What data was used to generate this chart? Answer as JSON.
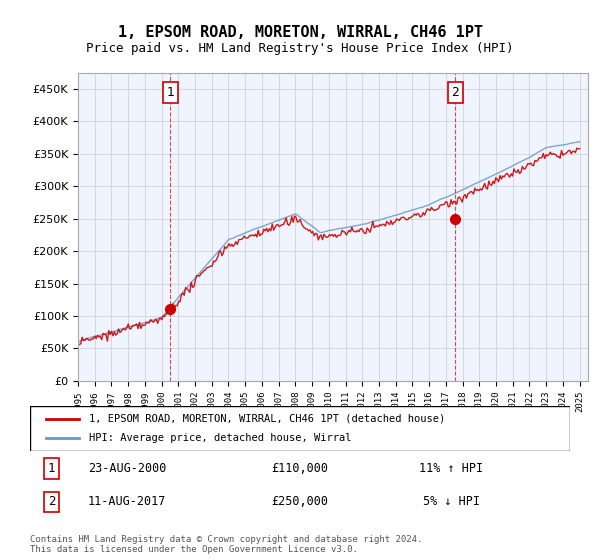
{
  "title": "1, EPSOM ROAD, MORETON, WIRRAL, CH46 1PT",
  "subtitle": "Price paid vs. HM Land Registry's House Price Index (HPI)",
  "legend_line1": "1, EPSOM ROAD, MORETON, WIRRAL, CH46 1PT (detached house)",
  "legend_line2": "HPI: Average price, detached house, Wirral",
  "transaction1_label": "1",
  "transaction1_date": "23-AUG-2000",
  "transaction1_price": "£110,000",
  "transaction1_hpi": "11% ↑ HPI",
  "transaction2_label": "2",
  "transaction2_date": "11-AUG-2017",
  "transaction2_price": "£250,000",
  "transaction2_hpi": "5% ↓ HPI",
  "footer": "Contains HM Land Registry data © Crown copyright and database right 2024.\nThis data is licensed under the Open Government Licence v3.0.",
  "red_color": "#cc0000",
  "blue_color": "#6699cc",
  "background_color": "#ffffff",
  "grid_color": "#cccccc",
  "ylim": [
    0,
    475000
  ],
  "yticks": [
    0,
    50000,
    100000,
    150000,
    200000,
    250000,
    300000,
    350000,
    400000,
    450000
  ],
  "xlabel_years": [
    "1995",
    "1996",
    "1997",
    "1998",
    "1999",
    "2000",
    "2001",
    "2002",
    "2003",
    "2004",
    "2005",
    "2006",
    "2007",
    "2008",
    "2009",
    "2010",
    "2011",
    "2012",
    "2013",
    "2014",
    "2015",
    "2016",
    "2017",
    "2018",
    "2019",
    "2020",
    "2021",
    "2022",
    "2023",
    "2024",
    "2025"
  ]
}
